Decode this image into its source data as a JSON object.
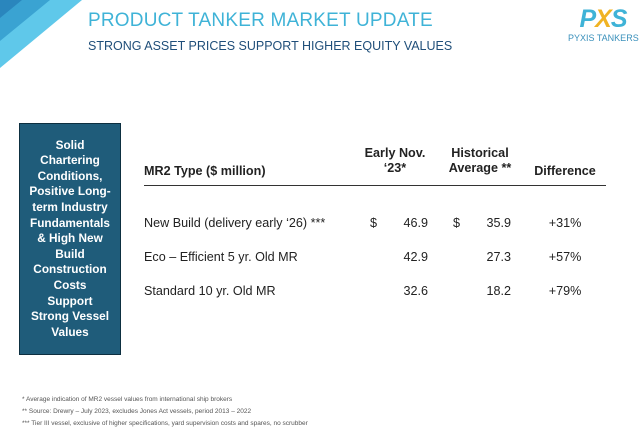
{
  "header": {
    "title": "PRODUCT TANKER MARKET UPDATE",
    "subtitle": "STRONG ASSET  PRICES SUPPORT HIGHER EQUITY VALUES",
    "logo_mark_left": "P",
    "logo_mark_x": "X",
    "logo_mark_right": "S",
    "logo_text": "PYXIS TANKERS",
    "accent_color": "#3fb3d7",
    "navy_color": "#1f4e79",
    "gold_color": "#f0b323"
  },
  "sidebar": {
    "text": "Solid\nChartering\nConditions,\nPositive Long-\nterm Industry\nFundamentals\n& High New\nBuild\nConstruction\nCosts\nSupport\nStrong Vessel\nValues",
    "background_color": "#1f5c7a"
  },
  "table": {
    "columns": [
      "MR2 Type ($ million)",
      "Early Nov.\n‘23*",
      "Historical\nAverage **",
      "Difference"
    ],
    "rows": [
      {
        "type": "New Build (delivery early ‘26) ***",
        "currency_early": "$",
        "early": "46.9",
        "currency_hist": "$",
        "historical": "35.9",
        "difference": "+31%"
      },
      {
        "type": "Eco – Efficient 5 yr. Old MR",
        "currency_early": "",
        "early": "42.9",
        "currency_hist": "",
        "historical": "27.3",
        "difference": "+57%"
      },
      {
        "type": "Standard 10 yr. Old MR",
        "currency_early": "",
        "early": "32.6",
        "currency_hist": "",
        "historical": "18.2",
        "difference": "+79%"
      }
    ]
  },
  "footnotes": [
    "* Average indication of MR2 vessel values from international ship brokers",
    "** Source: Drewry – July 2023, excludes Jones Act vessels, period 2013 – 2022",
    "*** Tier III vessel, exclusive of higher specifications, yard supervision costs and spares, no scrubber"
  ]
}
